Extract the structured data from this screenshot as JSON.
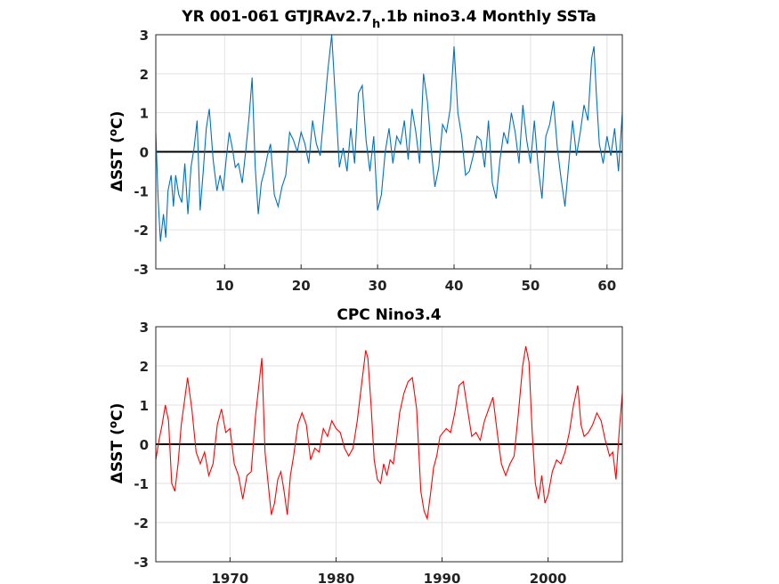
{
  "chart_data": [
    {
      "type": "line",
      "title_main": "YR 001-061 GTJRAv2.7",
      "title_sub": "h",
      "title_rest": ".1b nino3.4 Monthly SSTa",
      "ylabel_symbol": "Δ",
      "ylabel_text": "SST (",
      "ylabel_deg": "o",
      "ylabel_unit": "C)",
      "xlim": [
        1,
        62
      ],
      "ylim": [
        -3,
        3
      ],
      "xticks": [
        "10",
        "20",
        "30",
        "40",
        "50",
        "60"
      ],
      "yticks": [
        "-3",
        "-2",
        "-1",
        "0",
        "1",
        "2",
        "3"
      ],
      "grid": true,
      "color": "#0072bd",
      "series": [
        {
          "x": [
            1.0,
            1.3,
            1.6,
            2.0,
            2.3,
            2.6,
            3.0,
            3.3,
            3.6,
            4.0,
            4.4,
            4.8,
            5.2,
            5.6,
            6.0,
            6.4,
            6.8,
            7.2,
            7.6,
            8.0,
            8.5,
            9.0,
            9.4,
            9.8,
            10.2,
            10.6,
            11.0,
            11.4,
            11.8,
            12.3,
            12.8,
            13.2,
            13.6,
            14.0,
            14.4,
            14.8,
            15.2,
            15.6,
            16.0,
            16.5,
            17.0,
            17.5,
            18.0,
            18.5,
            19.0,
            19.5,
            20.0,
            20.5,
            21.0,
            21.5,
            22.0,
            22.5,
            23.0,
            23.5,
            24.0,
            24.5,
            25.0,
            25.5,
            26.0,
            26.5,
            27.0,
            27.5,
            28.0,
            28.5,
            29.0,
            29.5,
            30.0,
            30.5,
            31.0,
            31.5,
            32.0,
            32.5,
            33.0,
            33.5,
            34.0,
            34.5,
            35.0,
            35.5,
            36.0,
            36.5,
            37.0,
            37.5,
            38.0,
            38.5,
            39.0,
            39.5,
            40.0,
            40.5,
            41.0,
            41.5,
            42.0,
            42.5,
            43.0,
            43.5,
            44.0,
            44.5,
            45.0,
            45.5,
            46.0,
            46.5,
            47.0,
            47.5,
            48.0,
            48.5,
            49.0,
            49.5,
            50.0,
            50.5,
            51.0,
            51.5,
            52.0,
            52.5,
            53.0,
            53.5,
            54.0,
            54.5,
            55.0,
            55.5,
            56.0,
            56.5,
            57.0,
            57.5,
            58.0,
            58.3,
            58.6,
            59.0,
            59.5,
            60.0,
            60.5,
            61.0,
            61.5,
            62.0
          ],
          "y": [
            0.5,
            -1.2,
            -2.3,
            -1.6,
            -2.2,
            -1.0,
            -0.6,
            -1.4,
            -0.6,
            -1.1,
            -1.3,
            -0.3,
            -1.6,
            -0.4,
            0.1,
            0.8,
            -1.5,
            -0.5,
            0.6,
            1.1,
            -0.2,
            -1.0,
            -0.6,
            -1.0,
            -0.2,
            0.5,
            0.1,
            -0.4,
            -0.3,
            -0.8,
            0.1,
            0.9,
            1.9,
            -0.4,
            -1.6,
            -0.8,
            -0.5,
            -0.1,
            0.2,
            -1.1,
            -1.4,
            -0.9,
            -0.6,
            0.5,
            0.3,
            0.0,
            0.5,
            0.2,
            -0.3,
            0.8,
            0.2,
            -0.1,
            1.0,
            2.1,
            3.0,
            1.3,
            -0.4,
            0.1,
            -0.5,
            0.6,
            -0.3,
            1.5,
            1.7,
            0.3,
            -0.5,
            0.4,
            -1.5,
            -1.1,
            0.0,
            0.6,
            -0.3,
            0.4,
            0.2,
            0.8,
            -0.2,
            1.1,
            0.5,
            -0.3,
            2.0,
            1.3,
            0.1,
            -0.9,
            -0.4,
            0.7,
            0.5,
            1.1,
            2.7,
            1.0,
            0.4,
            -0.6,
            -0.5,
            -0.1,
            0.4,
            0.3,
            -0.4,
            0.8,
            -0.8,
            -1.2,
            -0.2,
            0.5,
            0.2,
            1.0,
            0.5,
            -0.3,
            1.2,
            0.3,
            -0.3,
            0.8,
            -0.4,
            -1.2,
            0.4,
            0.7,
            1.3,
            0.1,
            -0.7,
            -1.4,
            -0.3,
            0.8,
            -0.1,
            0.5,
            1.2,
            0.8,
            2.4,
            2.7,
            1.5,
            0.2,
            -0.3,
            0.4,
            -0.1,
            0.6,
            -0.5,
            1.0
          ]
        }
      ]
    },
    {
      "type": "line",
      "title": "CPC Nino3.4",
      "ylabel_symbol": "Δ",
      "ylabel_text": "SST (",
      "ylabel_deg": "o",
      "ylabel_unit": "C)",
      "xlim": [
        1963,
        2007
      ],
      "ylim": [
        -3,
        3
      ],
      "xticks": [
        "1970",
        "1980",
        "1990",
        "2000"
      ],
      "yticks": [
        "-3",
        "-2",
        "-1",
        "0",
        "1",
        "2",
        "3"
      ],
      "grid": true,
      "color": "#ff0000",
      "series": [
        {
          "x": [
            1963.0,
            1963.3,
            1963.6,
            1963.9,
            1964.2,
            1964.5,
            1964.8,
            1965.1,
            1965.4,
            1965.7,
            1966.0,
            1966.4,
            1966.8,
            1967.2,
            1967.6,
            1968.0,
            1968.4,
            1968.8,
            1969.2,
            1969.6,
            1970.0,
            1970.4,
            1970.8,
            1971.2,
            1971.6,
            1972.0,
            1972.4,
            1972.8,
            1973.0,
            1973.3,
            1973.6,
            1973.9,
            1974.2,
            1974.5,
            1974.8,
            1975.1,
            1975.4,
            1975.7,
            1976.0,
            1976.4,
            1976.8,
            1977.2,
            1977.6,
            1978.0,
            1978.4,
            1978.8,
            1979.2,
            1979.6,
            1980.0,
            1980.4,
            1980.8,
            1981.2,
            1981.6,
            1982.0,
            1982.4,
            1982.8,
            1983.0,
            1983.3,
            1983.6,
            1983.9,
            1984.2,
            1984.5,
            1984.8,
            1985.1,
            1985.4,
            1985.7,
            1986.0,
            1986.4,
            1986.8,
            1987.2,
            1987.6,
            1988.0,
            1988.3,
            1988.6,
            1988.9,
            1989.2,
            1989.5,
            1989.8,
            1990.1,
            1990.4,
            1990.8,
            1991.2,
            1991.6,
            1992.0,
            1992.4,
            1992.8,
            1993.2,
            1993.6,
            1994.0,
            1994.4,
            1994.8,
            1995.2,
            1995.6,
            1996.0,
            1996.4,
            1996.8,
            1997.2,
            1997.6,
            1997.9,
            1998.2,
            1998.5,
            1998.8,
            1999.1,
            1999.4,
            1999.7,
            2000.0,
            2000.4,
            2000.8,
            2001.2,
            2001.6,
            2002.0,
            2002.4,
            2002.8,
            2003.1,
            2003.4,
            2003.8,
            2004.2,
            2004.6,
            2005.0,
            2005.4,
            2005.8,
            2006.1,
            2006.4,
            2006.7,
            2007.0
          ],
          "y": [
            -0.4,
            0.1,
            0.5,
            1.0,
            0.6,
            -1.0,
            -1.2,
            -0.5,
            0.5,
            1.1,
            1.7,
            0.9,
            -0.2,
            -0.5,
            -0.2,
            -0.8,
            -0.5,
            0.5,
            0.9,
            0.3,
            0.4,
            -0.5,
            -0.8,
            -1.4,
            -0.8,
            -0.7,
            0.7,
            1.7,
            2.2,
            -0.2,
            -1.0,
            -1.8,
            -1.5,
            -0.9,
            -0.7,
            -1.2,
            -1.8,
            -0.8,
            -0.3,
            0.5,
            0.8,
            0.5,
            -0.4,
            -0.1,
            -0.2,
            0.4,
            0.2,
            0.6,
            0.4,
            0.3,
            -0.1,
            -0.3,
            -0.1,
            0.6,
            1.5,
            2.4,
            2.2,
            1.0,
            -0.4,
            -0.9,
            -1.0,
            -0.5,
            -0.8,
            -0.4,
            -0.5,
            0.1,
            0.8,
            1.3,
            1.6,
            1.7,
            0.9,
            -1.2,
            -1.7,
            -1.9,
            -1.3,
            -0.6,
            -0.3,
            0.2,
            0.3,
            0.4,
            0.3,
            0.8,
            1.5,
            1.6,
            0.9,
            0.2,
            0.3,
            0.1,
            0.6,
            0.9,
            1.2,
            0.3,
            -0.5,
            -0.8,
            -0.5,
            -0.3,
            0.8,
            2.0,
            2.5,
            2.1,
            0.3,
            -1.0,
            -1.4,
            -0.8,
            -1.5,
            -1.3,
            -0.7,
            -0.4,
            -0.5,
            -0.2,
            0.3,
            1.0,
            1.5,
            0.5,
            0.2,
            0.3,
            0.5,
            0.8,
            0.6,
            0.1,
            -0.3,
            -0.2,
            -0.9,
            0.3,
            1.3
          ]
        }
      ]
    }
  ]
}
